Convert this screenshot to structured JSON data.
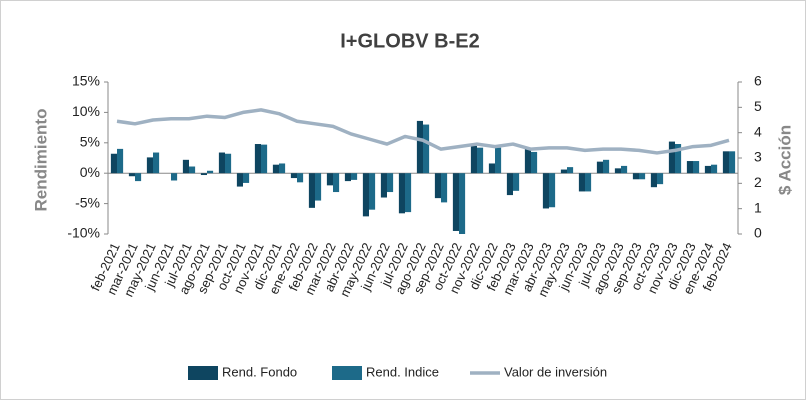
{
  "chart_data": {
    "type": "bar-line",
    "title": "I+GLOBV B-E2",
    "y_label": "Rendimiento",
    "y2_label": "$ Acción",
    "categories": [
      "feb-2021",
      "mar-2021",
      "may-2021",
      "jun-2021",
      "jul-2021",
      "ago-2021",
      "sep-2021",
      "oct-2021",
      "nov-2021",
      "dic-2021",
      "ene-2022",
      "feb-2022",
      "mar-2022",
      "abr-2022",
      "may-2022",
      "jun-2022",
      "jul-2022",
      "ago-2022",
      "sep-2022",
      "oct-2022",
      "nov-2022",
      "dic-2022",
      "feb-2023",
      "mar-2023",
      "abr-2023",
      "may-2023",
      "jun-2023",
      "jul-2023",
      "ago-2023",
      "sep-2023",
      "oct-2023",
      "nov-2023",
      "dic-2023",
      "ene-2024",
      "feb-2024"
    ],
    "series": [
      {
        "name": "Rend. Fondo",
        "type": "bar",
        "color": "#0e4560",
        "values": [
          3.2,
          -0.5,
          2.6,
          0.0,
          2.2,
          -0.3,
          3.4,
          -2.2,
          4.8,
          1.4,
          -0.8,
          -5.7,
          -2.0,
          -1.3,
          -7.1,
          -4.0,
          -6.6,
          8.6,
          -4.1,
          -9.5,
          4.5,
          1.6,
          -3.6,
          4.0,
          -5.8,
          0.6,
          -3.0,
          1.9,
          0.8,
          -1.0,
          -2.3,
          5.2,
          2.0,
          1.2,
          3.6
        ]
      },
      {
        "name": "Rend. Indice",
        "type": "bar",
        "color": "#1d6a89",
        "values": [
          4.0,
          -1.3,
          3.4,
          -1.2,
          1.1,
          0.4,
          3.2,
          -1.6,
          4.7,
          1.6,
          -1.5,
          -4.5,
          -3.1,
          -1.1,
          -6.0,
          -3.1,
          -6.4,
          8.0,
          -4.8,
          -10.0,
          4.2,
          4.2,
          -2.9,
          3.5,
          -5.6,
          1.0,
          -3.0,
          2.2,
          1.2,
          -1.0,
          -1.8,
          4.8,
          2.0,
          1.4,
          3.6
        ]
      },
      {
        "name": "Valor de inversión",
        "type": "line",
        "axis": "y2",
        "color": "#9fb1c2",
        "values": [
          4.45,
          4.35,
          4.5,
          4.55,
          4.55,
          4.65,
          4.6,
          4.8,
          4.9,
          4.75,
          4.45,
          4.35,
          4.25,
          3.95,
          3.75,
          3.55,
          3.85,
          3.7,
          3.35,
          3.45,
          3.55,
          3.45,
          3.55,
          3.35,
          3.4,
          3.4,
          3.3,
          3.35,
          3.35,
          3.3,
          3.2,
          3.3,
          3.45,
          3.5,
          3.7
        ]
      }
    ],
    "ylim": [
      -10,
      15
    ],
    "yticks": [
      {
        "value": -10,
        "label": "-10%"
      },
      {
        "value": -5,
        "label": "-5%"
      },
      {
        "value": 0,
        "label": "0%"
      },
      {
        "value": 5,
        "label": "5%"
      },
      {
        "value": 10,
        "label": "10%"
      },
      {
        "value": 15,
        "label": "15%"
      }
    ],
    "y2lim": [
      0,
      6
    ],
    "y2ticks": [
      0,
      1,
      2,
      3,
      4,
      5,
      6
    ],
    "legend": "bottom"
  }
}
